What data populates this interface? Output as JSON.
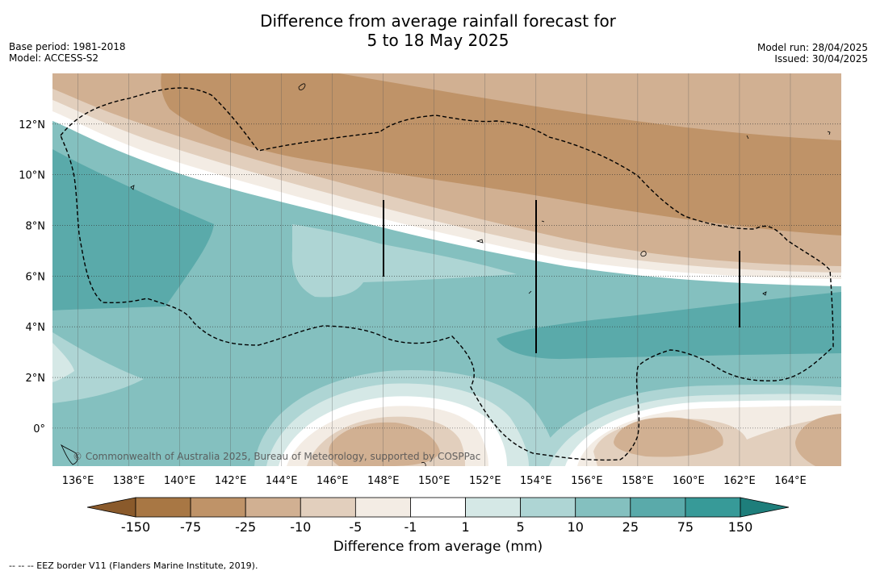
{
  "title": {
    "line1": "Difference from average rainfall forecast for",
    "line2": "5 to 18 May 2025"
  },
  "meta_left": {
    "base_period": "Base period: 1981-2018",
    "model": "Model: ACCESS-S2"
  },
  "meta_right": {
    "model_run": "Model run: 28/04/2025",
    "issued": "Issued: 30/04/2025"
  },
  "map": {
    "lon_range": [
      135,
      166
    ],
    "lat_range": [
      -1.5,
      14
    ],
    "lat_labels": [
      {
        "lat": 12,
        "label": "12°N"
      },
      {
        "lat": 10,
        "label": "10°N"
      },
      {
        "lat": 8,
        "label": "8°N"
      },
      {
        "lat": 6,
        "label": "6°N"
      },
      {
        "lat": 4,
        "label": "4°N"
      },
      {
        "lat": 2,
        "label": "2°N"
      },
      {
        "lat": 0,
        "label": "0°"
      }
    ],
    "lon_labels": [
      {
        "lon": 136,
        "label": "136°E"
      },
      {
        "lon": 138,
        "label": "138°E"
      },
      {
        "lon": 140,
        "label": "140°E"
      },
      {
        "lon": 142,
        "label": "142°E"
      },
      {
        "lon": 144,
        "label": "144°E"
      },
      {
        "lon": 146,
        "label": "146°E"
      },
      {
        "lon": 148,
        "label": "148°E"
      },
      {
        "lon": 150,
        "label": "150°E"
      },
      {
        "lon": 152,
        "label": "152°E"
      },
      {
        "lon": 154,
        "label": "154°E"
      },
      {
        "lon": 156,
        "label": "156°E"
      },
      {
        "lon": 158,
        "label": "158°E"
      },
      {
        "lon": 160,
        "label": "160°E"
      },
      {
        "lon": 162,
        "label": "162°E"
      },
      {
        "lon": 164,
        "label": "164°E"
      }
    ],
    "copyright": "© Commonwealth of Australia 2025, Bureau of Meteorology, supported by COSPPac"
  },
  "colorbar": {
    "label": "Difference from average (mm)",
    "colors": [
      "#8a5a2b",
      "#a87744",
      "#bf9368",
      "#d1b092",
      "#e2cfbd",
      "#f3ece4",
      "#ffffff",
      "#d5e8e6",
      "#aed5d4",
      "#84c0bf",
      "#5aaaaa",
      "#379a98",
      "#1e7e7b"
    ],
    "ticks": [
      "-150",
      "-75",
      "-25",
      "-10",
      "-5",
      "-1",
      "1",
      "5",
      "10",
      "25",
      "75",
      "150"
    ]
  },
  "footnote": "--  --  -- EEZ border V11 (Flanders Marine Institute, 2019)."
}
